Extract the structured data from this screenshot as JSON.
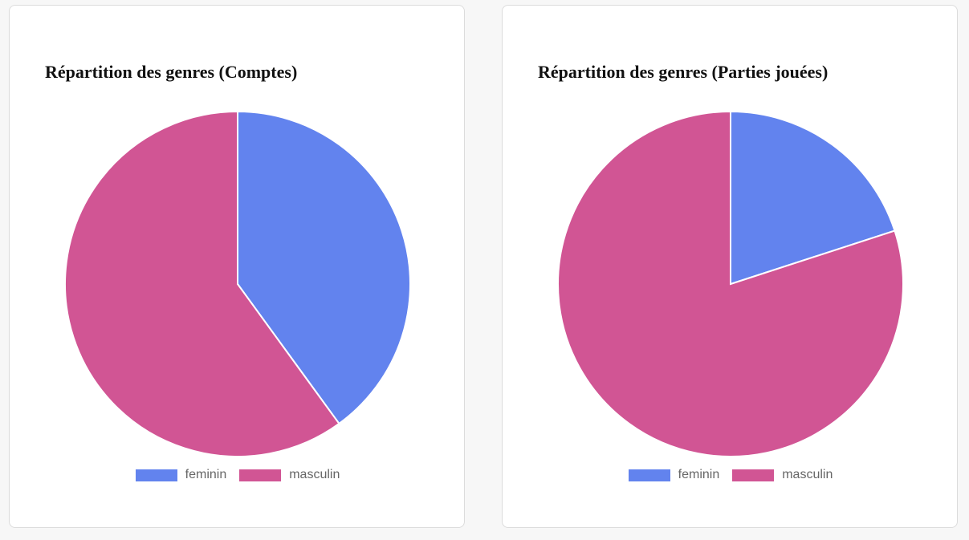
{
  "chart_data": [
    {
      "type": "pie",
      "title": "Répartition des genres (Comptes)",
      "categories": [
        "feminin",
        "masculin"
      ],
      "values": [
        40,
        60
      ],
      "colors": [
        "#6283ee",
        "#d15594"
      ],
      "legend": "bottom"
    },
    {
      "type": "pie",
      "title": "Répartition des genres (Parties jouées)",
      "categories": [
        "feminin",
        "masculin"
      ],
      "values": [
        20,
        80
      ],
      "colors": [
        "#6283ee",
        "#d15594"
      ],
      "legend": "bottom"
    }
  ]
}
